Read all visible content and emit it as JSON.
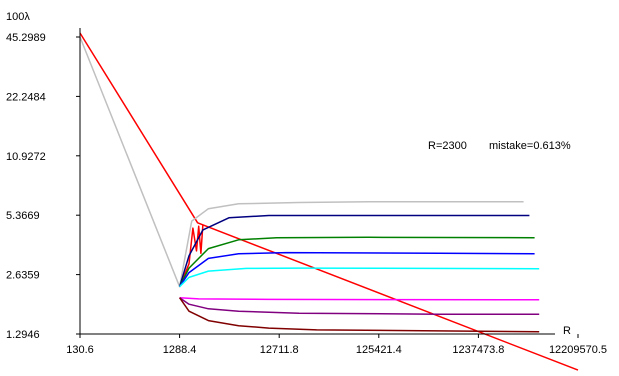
{
  "chart_data": {
    "type": "line",
    "title": "",
    "ylabel": "100λ",
    "xlabel": "R",
    "x_scale": "log",
    "y_scale": "log",
    "xlim": [
      130.6,
      12209570.5
    ],
    "ylim": [
      1.2946,
      45.2989
    ],
    "x_ticks": [
      "130.6",
      "1288.4",
      "12711.8",
      "125421.4",
      "1237473.8",
      "12209570.5"
    ],
    "y_ticks": [
      "1.2946",
      "2.6359",
      "5.3669",
      "10.9272",
      "22.2484",
      "45.2989"
    ],
    "grid": false,
    "annotations": [
      {
        "id": "r_value",
        "text": "R=2300"
      },
      {
        "id": "mistake",
        "text": "mistake=0.613%"
      }
    ],
    "series": [
      {
        "color": "#ff0000",
        "points": [
          [
            130.6,
            47.5
          ],
          [
            1950,
            4.9
          ],
          [
            12209570.5,
            0.84
          ]
        ]
      },
      {
        "color": "#ff0000",
        "points": [
          [
            1300,
            2.3
          ],
          [
            1600,
            3.0
          ],
          [
            1750,
            4.6
          ],
          [
            1900,
            3.5
          ],
          [
            2000,
            4.7
          ],
          [
            2100,
            3.4
          ],
          [
            2200,
            4.8
          ]
        ]
      },
      {
        "color": "#c0c0c0",
        "points": [
          [
            130.6,
            45.3
          ],
          [
            1288.4,
            2.28
          ],
          [
            1700,
            5.0
          ],
          [
            2500,
            5.8
          ],
          [
            5000,
            6.15
          ],
          [
            20000,
            6.25
          ],
          [
            100000,
            6.3
          ],
          [
            500000,
            6.3
          ],
          [
            3500000,
            6.3
          ]
        ]
      },
      {
        "color": "#000080",
        "points": [
          [
            1288.4,
            2.28
          ],
          [
            1600,
            3.3
          ],
          [
            2200,
            4.5
          ],
          [
            4000,
            5.2
          ],
          [
            10000,
            5.35
          ],
          [
            100000,
            5.35
          ],
          [
            4000000,
            5.35
          ]
        ]
      },
      {
        "color": "#008000",
        "points": [
          [
            1288.4,
            2.28
          ],
          [
            1600,
            2.85
          ],
          [
            2500,
            3.6
          ],
          [
            5000,
            4.0
          ],
          [
            12000,
            4.1
          ],
          [
            100000,
            4.12
          ],
          [
            4500000,
            4.1
          ]
        ]
      },
      {
        "color": "#0000ff",
        "points": [
          [
            1288.4,
            2.28
          ],
          [
            1600,
            2.7
          ],
          [
            2500,
            3.2
          ],
          [
            5000,
            3.38
          ],
          [
            15000,
            3.43
          ],
          [
            500000,
            3.4
          ],
          [
            4500000,
            3.38
          ]
        ]
      },
      {
        "color": "#00ffff",
        "points": [
          [
            1288.4,
            2.28
          ],
          [
            1600,
            2.55
          ],
          [
            2500,
            2.75
          ],
          [
            6000,
            2.84
          ],
          [
            20000,
            2.85
          ],
          [
            5000000,
            2.83
          ]
        ]
      },
      {
        "color": "#ff00ff",
        "points": [
          [
            1288.4,
            2.0
          ],
          [
            2000,
            1.97
          ],
          [
            10000,
            1.96
          ],
          [
            5000000,
            1.95
          ]
        ]
      },
      {
        "color": "#800080",
        "points": [
          [
            1288.4,
            2.0
          ],
          [
            1600,
            1.85
          ],
          [
            2500,
            1.75
          ],
          [
            5000,
            1.7
          ],
          [
            20000,
            1.66
          ],
          [
            500000,
            1.64
          ],
          [
            5000000,
            1.64
          ]
        ]
      },
      {
        "color": "#800000",
        "points": [
          [
            1288.4,
            2.0
          ],
          [
            1600,
            1.7
          ],
          [
            2500,
            1.52
          ],
          [
            5000,
            1.43
          ],
          [
            10000,
            1.39
          ],
          [
            30000,
            1.36
          ],
          [
            5000000,
            1.33
          ]
        ]
      }
    ]
  }
}
